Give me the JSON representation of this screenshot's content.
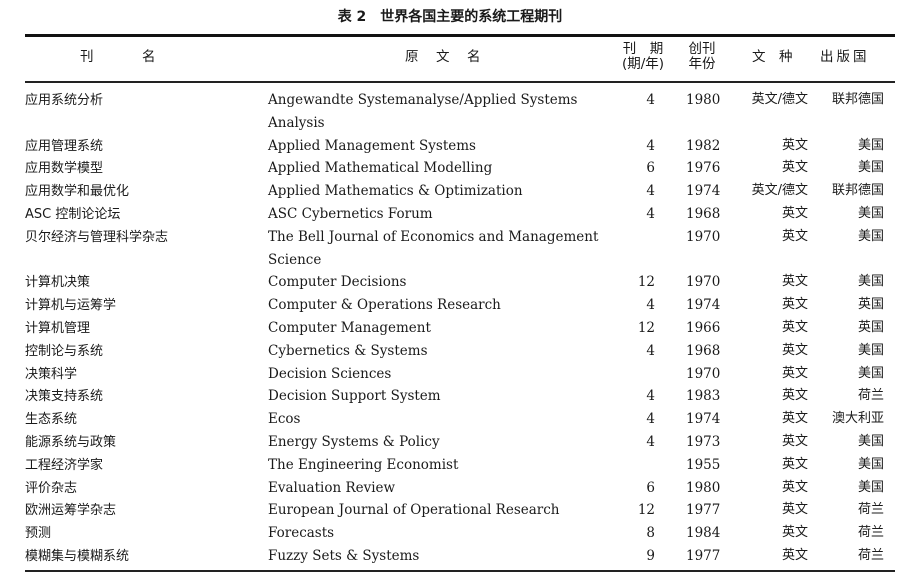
{
  "title": "表 2　世界各国主要的系统工程期刊",
  "headers": {
    "cn_name": "刊　　　名",
    "original_name": "原　文　名",
    "frequency_line1": "刊　期",
    "frequency_line2": "(期/年)",
    "founded_line1": "创刊",
    "founded_line2": "年份",
    "language": "文　种",
    "country": "出版国"
  },
  "rows": [
    {
      "cn": "应用系统分析",
      "en": "Angewandte Systemanalyse/Applied Systems Analysis",
      "freq": "4",
      "year": "1980",
      "lang": "英文/德文",
      "country": "联邦德国",
      "two": true
    },
    {
      "cn": "应用管理系统",
      "en": "Applied Management Systems",
      "freq": "4",
      "year": "1982",
      "lang": "英文",
      "country": "美国"
    },
    {
      "cn": "应用数学模型",
      "en": "Applied Mathematical Modelling",
      "freq": "6",
      "year": "1976",
      "lang": "英文",
      "country": "美国"
    },
    {
      "cn": "应用数学和最优化",
      "en": "Applied Mathematics & Optimization",
      "freq": "4",
      "year": "1974",
      "lang": "英文/德文",
      "country": "联邦德国"
    },
    {
      "cn": "ASC 控制论论坛",
      "en": "ASC Cybernetics Forum",
      "freq": "4",
      "year": "1968",
      "lang": "英文",
      "country": "美国"
    },
    {
      "cn": "贝尔经济与管理科学杂志",
      "en": "The Bell Journal of Economics and Management Science",
      "freq": "",
      "year": "1970",
      "lang": "英文",
      "country": "美国",
      "two": true
    },
    {
      "cn": "计算机决策",
      "en": "Computer Decisions",
      "freq": "12",
      "year": "1970",
      "lang": "英文",
      "country": "美国"
    },
    {
      "cn": "计算机与运筹学",
      "en": "Computer & Operations Research",
      "freq": "4",
      "year": "1974",
      "lang": "英文",
      "country": "英国"
    },
    {
      "cn": "计算机管理",
      "en": "Computer Management",
      "freq": "12",
      "year": "1966",
      "lang": "英文",
      "country": "英国"
    },
    {
      "cn": "控制论与系统",
      "en": "Cybernetics & Systems",
      "freq": "4",
      "year": "1968",
      "lang": "英文",
      "country": "美国"
    },
    {
      "cn": "决策科学",
      "en": "Decision Sciences",
      "freq": "",
      "year": "1970",
      "lang": "英文",
      "country": "美国"
    },
    {
      "cn": "决策支持系统",
      "en": "Decision Support System",
      "freq": "4",
      "year": "1983",
      "lang": "英文",
      "country": "荷兰"
    },
    {
      "cn": "生态系统",
      "en": "Ecos",
      "freq": "4",
      "year": "1974",
      "lang": "英文",
      "country": "澳大利亚"
    },
    {
      "cn": "能源系统与政策",
      "en": "Energy Systems & Policy",
      "freq": "4",
      "year": "1973",
      "lang": "英文",
      "country": "美国"
    },
    {
      "cn": "工程经济学家",
      "en": "The Engineering Economist",
      "freq": "",
      "year": "1955",
      "lang": "英文",
      "country": "美国"
    },
    {
      "cn": "评价杂志",
      "en": "Evaluation Review",
      "freq": "6",
      "year": "1980",
      "lang": "英文",
      "country": "美国"
    },
    {
      "cn": "欧洲运筹学杂志",
      "en": "European Journal of Operational Research",
      "freq": "12",
      "year": "1977",
      "lang": "英文",
      "country": "荷兰"
    },
    {
      "cn": "预测",
      "en": "Forecasts",
      "freq": "8",
      "year": "1984",
      "lang": "英文",
      "country": "荷兰"
    },
    {
      "cn": "模糊集与模糊系统",
      "en": "Fuzzy Sets & Systems",
      "freq": "9",
      "year": "1977",
      "lang": "英文",
      "country": "荷兰"
    }
  ]
}
